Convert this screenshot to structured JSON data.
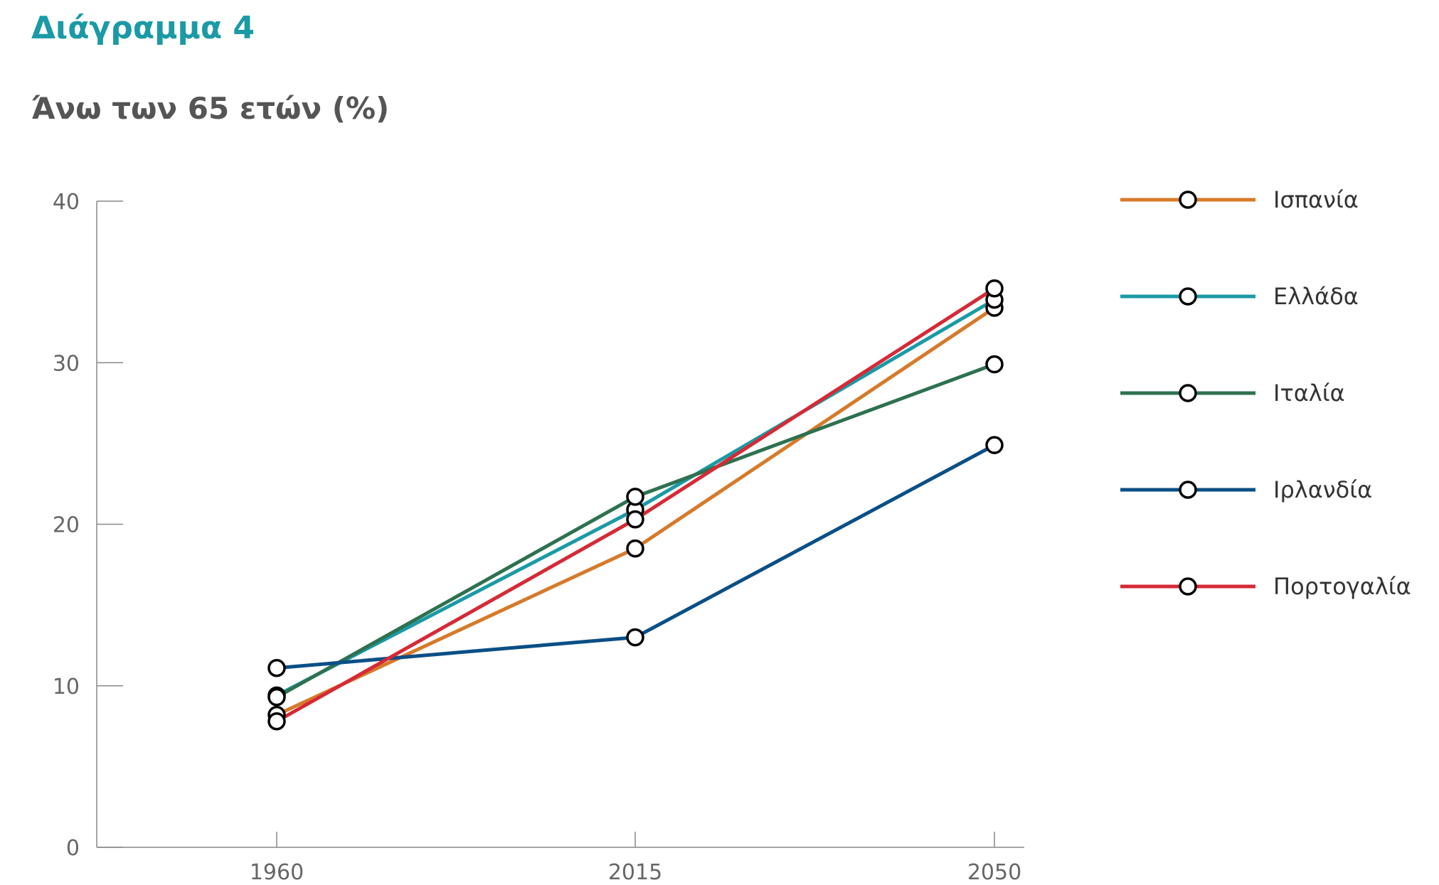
{
  "heading": "Διάγραμμα 4",
  "chart_data": {
    "type": "line",
    "title": "Άνω των 65 ετών (%)",
    "xlabel": "",
    "ylabel": "",
    "x": [
      "1960",
      "2015",
      "2050"
    ],
    "yticks": [
      0,
      10,
      20,
      30,
      40
    ],
    "ylim": [
      0,
      40
    ],
    "grid": false,
    "legend": "right",
    "series": [
      {
        "name": "Ισπανία",
        "color": "#d67a2a",
        "values": [
          8.2,
          18.5,
          33.4
        ]
      },
      {
        "name": "Ελλάδα",
        "color": "#1b9aa6",
        "values": [
          9.4,
          20.9,
          33.9
        ]
      },
      {
        "name": "Ιταλία",
        "color": "#2e7150",
        "values": [
          9.3,
          21.7,
          29.9
        ]
      },
      {
        "name": "Ιρλανδία",
        "color": "#0a4f86",
        "values": [
          11.1,
          13.0,
          24.9
        ]
      },
      {
        "name": "Πορτογαλία",
        "color": "#d52a36",
        "values": [
          7.8,
          20.3,
          34.6
        ]
      }
    ]
  }
}
